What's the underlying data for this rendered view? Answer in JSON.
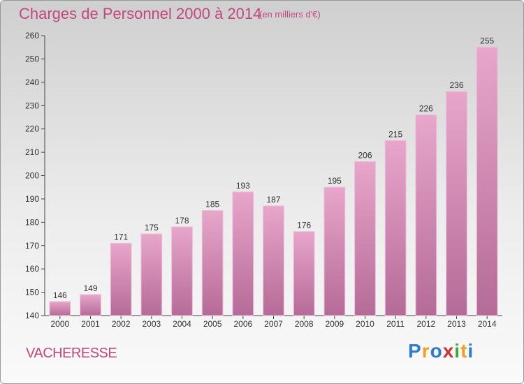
{
  "title": "Charges de Personnel 2000 à 2014",
  "subtitle": "(en milliers d'€)",
  "place": "VACHERESSE",
  "logo": {
    "text": "Proxiti",
    "letters": [
      "P",
      "r",
      "o",
      "x",
      "i",
      "t",
      "i"
    ],
    "colors": [
      "#2c7bd6",
      "#f0a020",
      "#2c7bd6",
      "#d43030",
      "#3aa83a",
      "#f0a020",
      "#2c7bd6"
    ]
  },
  "colors": {
    "bar_top": "#e8a6cb",
    "bar_bottom": "#b56b97",
    "accent": "#c2477f"
  },
  "chart_data": {
    "type": "bar",
    "categories": [
      "2000",
      "2001",
      "2002",
      "2003",
      "2004",
      "2005",
      "2006",
      "2007",
      "2008",
      "2009",
      "2010",
      "2011",
      "2012",
      "2013",
      "2014"
    ],
    "values": [
      146,
      149,
      171,
      175,
      178,
      185,
      193,
      187,
      176,
      195,
      206,
      215,
      226,
      236,
      255
    ],
    "ylim": [
      140,
      260
    ],
    "yticks": [
      140,
      150,
      160,
      170,
      180,
      190,
      200,
      210,
      220,
      230,
      240,
      250,
      260
    ],
    "grid": false,
    "legend": "none"
  }
}
